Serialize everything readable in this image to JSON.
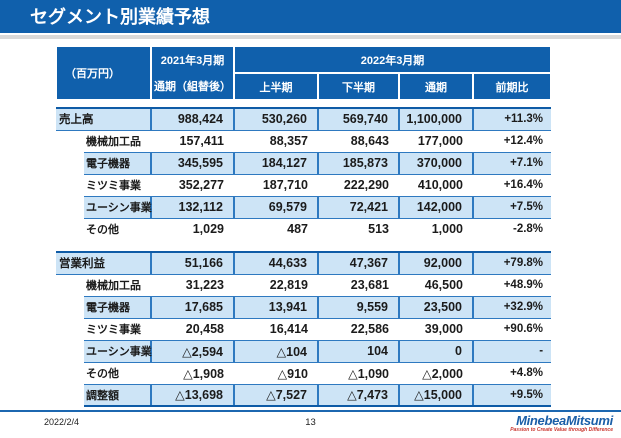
{
  "title": "セグメント別業績予想",
  "table": {
    "unit": "（百万円）",
    "fy2021_line1": "2021年3月期",
    "fy2021_line2": "通期（組替後）",
    "fy2022": "2022年3月期",
    "subcols": [
      "上半期",
      "下半期",
      "通期",
      "前期比"
    ],
    "sections": [
      {
        "name": "売上高",
        "rows": [
          {
            "label": "売上高",
            "total": true,
            "values": [
              "988,424",
              "530,260",
              "569,740",
              "1,100,000",
              "+11.3%"
            ]
          },
          {
            "label": "機械加工品",
            "values": [
              "157,411",
              "88,357",
              "88,643",
              "177,000",
              "+12.4%"
            ]
          },
          {
            "label": "電子機器",
            "values": [
              "345,595",
              "184,127",
              "185,873",
              "370,000",
              "+7.1%"
            ]
          },
          {
            "label": "ミツミ事業",
            "values": [
              "352,277",
              "187,710",
              "222,290",
              "410,000",
              "+16.4%"
            ]
          },
          {
            "label": "ユーシン事業",
            "values": [
              "132,112",
              "69,579",
              "72,421",
              "142,000",
              "+7.5%"
            ]
          },
          {
            "label": "その他",
            "values": [
              "1,029",
              "487",
              "513",
              "1,000",
              "-2.8%"
            ]
          }
        ]
      },
      {
        "name": "営業利益",
        "rows": [
          {
            "label": "営業利益",
            "total": true,
            "values": [
              "51,166",
              "44,633",
              "47,367",
              "92,000",
              "+79.8%"
            ]
          },
          {
            "label": "機械加工品",
            "values": [
              "31,223",
              "22,819",
              "23,681",
              "46,500",
              "+48.9%"
            ]
          },
          {
            "label": "電子機器",
            "values": [
              "17,685",
              "13,941",
              "9,559",
              "23,500",
              "+32.9%"
            ]
          },
          {
            "label": "ミツミ事業",
            "values": [
              "20,458",
              "16,414",
              "22,586",
              "39,000",
              "+90.6%"
            ]
          },
          {
            "label": "ユーシン事業",
            "values": [
              "△2,594",
              "△104",
              "104",
              "0",
              "-"
            ]
          },
          {
            "label": "その他",
            "values": [
              "△1,908",
              "△910",
              "△1,090",
              "△2,000",
              "+4.8%"
            ]
          },
          {
            "label": "調整額",
            "values": [
              "△13,698",
              "△7,527",
              "△7,473",
              "△15,000",
              "+9.5%"
            ]
          }
        ]
      }
    ]
  },
  "footer": {
    "date": "2022/2/4",
    "page": "13",
    "logo_text": "MinebeaMitsumi",
    "logo_tagline": "Passion to Create Value through Difference"
  },
  "colors": {
    "banner_blue": "#1060ac",
    "row_blue": "#cde4f6",
    "grid_blue": "#2e79c0",
    "strong_line": "#0e5ba6",
    "logo_blue": "#1b5fa8",
    "logo_red": "#c9352e"
  }
}
